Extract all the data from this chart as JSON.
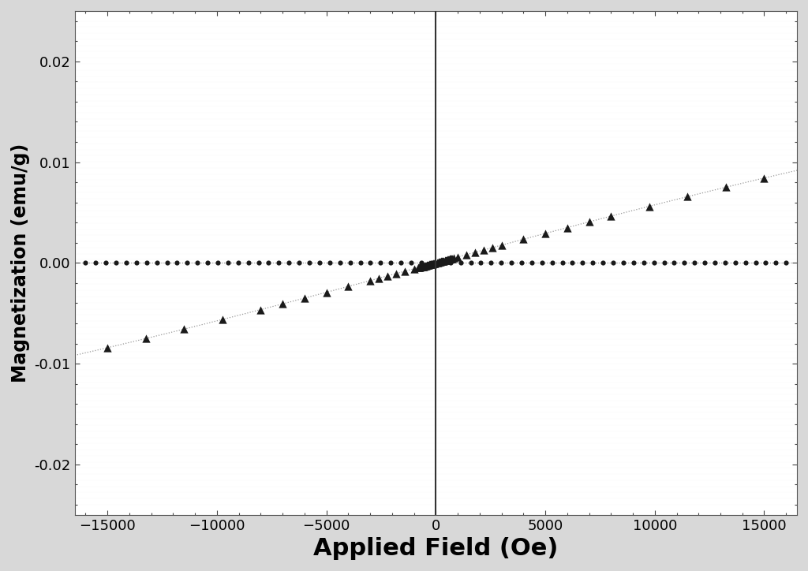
{
  "title": "",
  "xlabel": "Applied Field (Oe)",
  "ylabel": "Magnetization (emu/g)",
  "xlim": [
    -16500,
    16500
  ],
  "ylim": [
    -0.025,
    0.025
  ],
  "xticks": [
    -15000,
    -10000,
    -5000,
    0,
    5000,
    10000,
    15000
  ],
  "yticks": [
    -0.02,
    -0.01,
    0.0,
    0.01,
    0.02
  ],
  "background_color": "#d8d8d8",
  "plot_bg_color": "#ffffff",
  "tri_color": "#1a1a1a",
  "circle_color": "#1a1a1a",
  "dot_line_color": "#999999",
  "Ms": 0.0235,
  "a_param": 40000,
  "xlabel_fontsize": 22,
  "ylabel_fontsize": 17,
  "tick_fontsize": 13
}
